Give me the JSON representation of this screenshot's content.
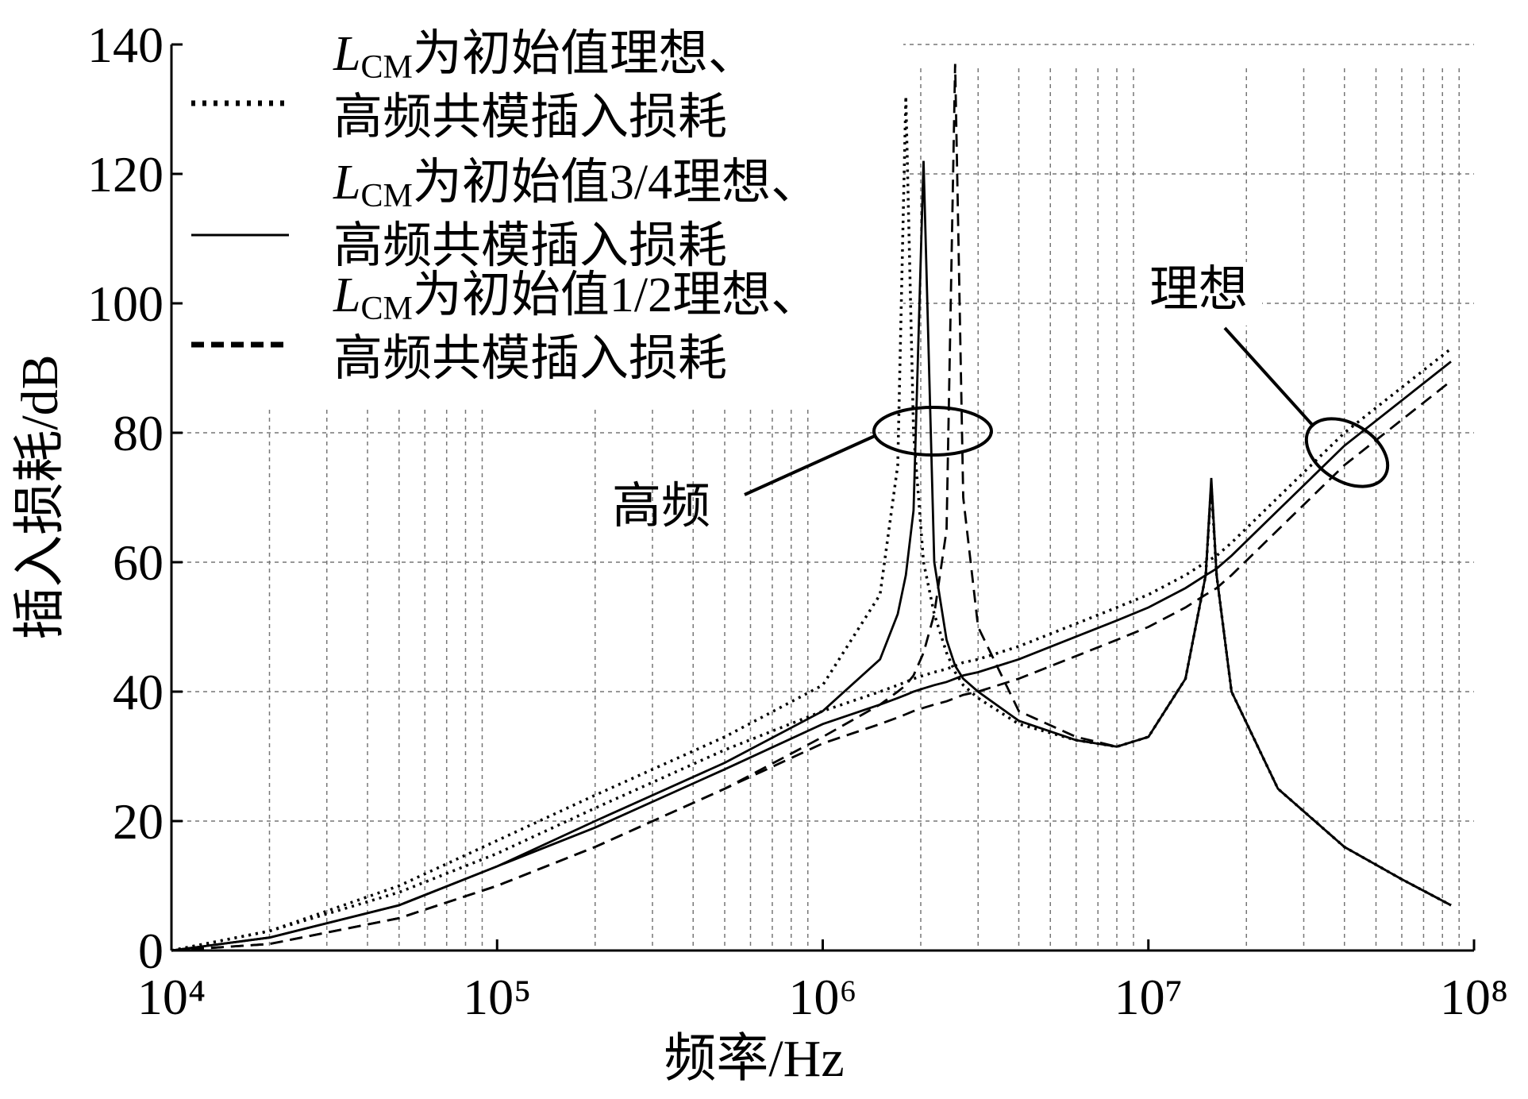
{
  "chart_data": {
    "type": "line",
    "xlabel": "频率/Hz",
    "ylabel": "插入损耗/dB",
    "xscale": "log",
    "xlim": [
      10000,
      100000000
    ],
    "ylim": [
      0,
      140
    ],
    "xticks": [
      {
        "value": 10000,
        "label": "10⁴"
      },
      {
        "value": 100000,
        "label": "10⁵"
      },
      {
        "value": 1000000,
        "label": "10⁶"
      },
      {
        "value": 10000000,
        "label": "10⁷"
      },
      {
        "value": 100000000,
        "label": "10⁸"
      }
    ],
    "yticks": [
      0,
      20,
      40,
      60,
      80,
      100,
      120,
      140
    ],
    "grid": true,
    "legend": "upper left",
    "x": [
      10000,
      20000,
      50000,
      100000,
      200000,
      500000,
      1000000,
      1500000,
      1700000,
      1800000,
      1900000,
      2040000,
      2200000,
      2400000,
      2550000,
      2700000,
      3000000,
      4000000,
      6000000,
      8000000,
      10000000,
      13000000,
      15000000,
      15600000,
      16200000,
      18000000,
      25000000,
      40000000,
      60000000,
      85000000
    ],
    "series": [
      {
        "name": "LCM为初始值理想、高频共模插入损耗",
        "color": "#000000",
        "dash": "dotted",
        "ideal": [
          0,
          3,
          9,
          15,
          22,
          31,
          37,
          40,
          41,
          41.5,
          42,
          42.5,
          43,
          43.5,
          44,
          44.5,
          45,
          47,
          50.5,
          53,
          55,
          58,
          60,
          60.5,
          61,
          63,
          70,
          80,
          87,
          93
        ],
        "high_freq": [
          0,
          3,
          10,
          17,
          24,
          33,
          41,
          55,
          75,
          132,
          80,
          60,
          52,
          46,
          43,
          41,
          39,
          35,
          32.5,
          31.5,
          33,
          42,
          58,
          72,
          58,
          40,
          25,
          16,
          11,
          7
        ]
      },
      {
        "name": "LCM为初始值3/4理想、高频共模插入损耗",
        "color": "#000000",
        "dash": "solid",
        "ideal": [
          0,
          2,
          7,
          13,
          19,
          28,
          35,
          38,
          39,
          39.5,
          40,
          40.5,
          41,
          41.5,
          42,
          42.5,
          43,
          45,
          48.5,
          51,
          53,
          56,
          58,
          58.5,
          59,
          61,
          68,
          78,
          85,
          91
        ],
        "high_freq": [
          0,
          2,
          7,
          13,
          20,
          29,
          37,
          45,
          52,
          58,
          68,
          122,
          60,
          48,
          44,
          42,
          40,
          35.5,
          32.5,
          31.5,
          33,
          42,
          58,
          73,
          58,
          40,
          25,
          16,
          11,
          7
        ]
      },
      {
        "name": "LCM为初始值1/2理想、高频共模插入损耗",
        "color": "#000000",
        "dash": "dashed",
        "ideal": [
          0,
          1,
          5,
          10,
          16,
          25,
          32,
          35,
          36,
          36.5,
          37,
          37.5,
          38,
          38.5,
          39,
          39.5,
          40,
          42,
          45.5,
          48,
          50,
          53,
          55,
          55.5,
          56,
          58,
          65,
          75,
          82,
          88
        ],
        "high_freq": [
          0,
          1,
          5,
          10,
          16,
          25,
          33,
          38,
          40,
          41,
          42.5,
          46,
          52,
          65,
          137,
          70,
          50,
          37,
          33,
          31.5,
          33,
          42,
          58,
          72,
          58,
          40,
          25,
          16,
          11,
          7
        ]
      }
    ],
    "annotations": [
      "理想",
      "高频"
    ]
  }
}
